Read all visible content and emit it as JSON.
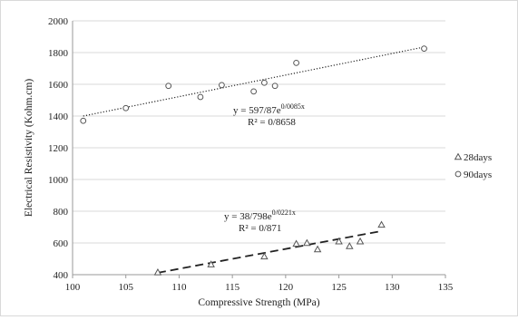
{
  "chart_data": {
    "type": "scatter",
    "title": "",
    "xlabel": "Compressive Strength (MPa)",
    "ylabel": "Electrical Resistivity (Kohm.cm)",
    "xlim": [
      100,
      135
    ],
    "ylim": [
      400,
      2000
    ],
    "x_ticks": [
      100,
      105,
      110,
      115,
      120,
      125,
      130,
      135
    ],
    "y_ticks": [
      400,
      600,
      800,
      1000,
      1200,
      1400,
      1600,
      1800,
      2000
    ],
    "grid": "horizontal",
    "legend_position": "right",
    "series": [
      {
        "name": "28days",
        "marker": "triangle",
        "trendline": "dashed",
        "equation": "y = 38/798e",
        "exponent": "0/0221x",
        "r2": "R² = 0/871",
        "trend_start": [
          108,
          412
        ],
        "trend_end": [
          129,
          675
        ],
        "points": [
          [
            108,
            415
          ],
          [
            113,
            465
          ],
          [
            118,
            515
          ],
          [
            121,
            595
          ],
          [
            122,
            600
          ],
          [
            123,
            560
          ],
          [
            125,
            610
          ],
          [
            126,
            580
          ],
          [
            127,
            610
          ],
          [
            129,
            715
          ]
        ]
      },
      {
        "name": "90days",
        "marker": "circle",
        "trendline": "dotted",
        "equation": "y = 597/87e",
        "exponent": "0/0085x",
        "r2": "R² = 0/8658",
        "trend_start": [
          101,
          1400
        ],
        "trend_end": [
          133,
          1835
        ],
        "points": [
          [
            101,
            1370
          ],
          [
            105,
            1450
          ],
          [
            109,
            1590
          ],
          [
            112,
            1520
          ],
          [
            114,
            1595
          ],
          [
            117,
            1555
          ],
          [
            118,
            1610
          ],
          [
            119,
            1590
          ],
          [
            121,
            1735
          ],
          [
            133,
            1825
          ]
        ]
      }
    ]
  },
  "colors": {
    "axis": "#9a9a9a",
    "grid": "#d9d9d9",
    "marker": "#555555",
    "trend": "#222222"
  }
}
